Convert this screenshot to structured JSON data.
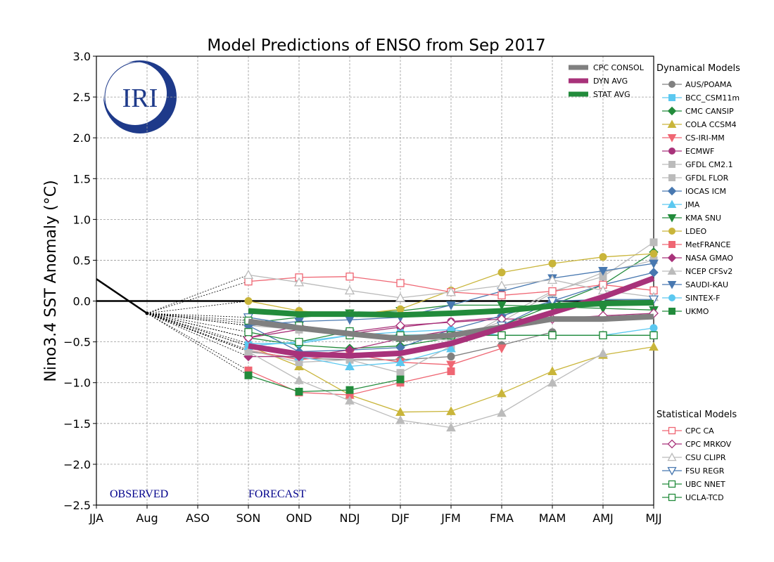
{
  "chart_data": {
    "type": "line",
    "title": "Model Predictions of ENSO from Sep 2017",
    "ylabel": "Nino3.4 SST Anomaly (°C)",
    "xlabel": "",
    "categories": [
      "JJA",
      "Aug",
      "ASO",
      "SON",
      "OND",
      "NDJ",
      "DJF",
      "JFM",
      "FMA",
      "MAM",
      "AMJ",
      "MJJ"
    ],
    "yticks": [
      "3.0",
      "2.5",
      "2.0",
      "1.5",
      "1.0",
      "0.5",
      "0.0",
      "−0.5",
      "−1.0",
      "−1.5",
      "−2.0",
      "−2.5"
    ],
    "ylim": [
      -2.5,
      3.0
    ],
    "grid": true,
    "logo_text": "IRI",
    "observed_label": "OBSERVED",
    "forecast_label": "FORECAST",
    "observed": {
      "x": [
        "JJA",
        "Aug"
      ],
      "values": [
        0.27,
        -0.15
      ]
    },
    "forecast_x": [
      "SON",
      "OND",
      "NDJ",
      "DJF",
      "JFM",
      "FMA",
      "MAM",
      "AMJ",
      "MJJ"
    ],
    "averages": [
      {
        "name": "CPC CONSOL",
        "color": "#808080",
        "values": [
          -0.25,
          -0.33,
          -0.4,
          -0.46,
          -0.42,
          -0.32,
          -0.22,
          -0.22,
          -0.19
        ]
      },
      {
        "name": "DYN AVG",
        "color": "#a8327a",
        "values": [
          -0.55,
          -0.65,
          -0.67,
          -0.64,
          -0.52,
          -0.33,
          -0.14,
          0.05,
          0.28
        ]
      },
      {
        "name": "STAT AVG",
        "color": "#228b3b",
        "values": [
          -0.12,
          -0.16,
          -0.16,
          -0.17,
          -0.15,
          -0.12,
          -0.06,
          -0.03,
          -0.02
        ]
      }
    ],
    "dynamical_title": "Dynamical Models",
    "dynamical": [
      {
        "name": "AUS/POAMA",
        "color": "#808080",
        "marker": "circle",
        "values": [
          -0.62,
          -0.7,
          -0.72,
          -0.72,
          -0.68,
          -0.54,
          -0.38,
          null,
          null
        ]
      },
      {
        "name": "BCC_CSM11m",
        "color": "#5bc8f0",
        "marker": "square",
        "values": [
          -0.55,
          -0.5,
          -0.42,
          -0.42,
          -0.4,
          -0.42,
          -0.42,
          -0.42,
          -0.42
        ]
      },
      {
        "name": "CMC CANSIP",
        "color": "#228b3b",
        "marker": "diamond",
        "values": [
          -0.45,
          -0.54,
          -0.58,
          -0.55,
          -0.45,
          -0.3,
          -0.05,
          0.2,
          0.6
        ]
      },
      {
        "name": "COLA CCSM4",
        "color": "#c9b53a",
        "marker": "tri-up",
        "values": [
          -0.55,
          -0.8,
          -1.15,
          -1.36,
          -1.35,
          -1.13,
          -0.86,
          -0.66,
          -0.56
        ]
      },
      {
        "name": "CS-IRI-MM",
        "color": "#ef6673",
        "marker": "tri-down",
        "values": [
          -0.6,
          -0.72,
          -0.65,
          -0.75,
          -0.78,
          -0.58,
          null,
          null,
          null
        ]
      },
      {
        "name": "ECMWF",
        "color": "#a8327a",
        "marker": "circle",
        "values": [
          -0.45,
          -0.35,
          -0.4,
          -0.32,
          -0.25,
          -0.2,
          null,
          null,
          null
        ]
      },
      {
        "name": "GFDL CM2.1",
        "color": "#bbbbbb",
        "marker": "square",
        "values": [
          -0.6,
          -0.75,
          -0.72,
          -0.88,
          -0.55,
          -0.2,
          0.12,
          0.3,
          0.72
        ]
      },
      {
        "name": "GFDL FLOR",
        "color": "#bbbbbb",
        "marker": "square",
        "values": [
          -0.3,
          -0.35,
          -0.38,
          -0.45,
          -0.48,
          -0.25,
          0.1,
          0.35,
          0.5
        ]
      },
      {
        "name": "IOCAS ICM",
        "color": "#4878b0",
        "marker": "diamond",
        "values": [
          -0.3,
          -0.62,
          -0.6,
          -0.57,
          -0.35,
          -0.18,
          0.0,
          0.2,
          0.35
        ]
      },
      {
        "name": "JMA",
        "color": "#5bc8f0",
        "marker": "tri-up",
        "values": [
          -0.55,
          -0.68,
          -0.8,
          -0.75,
          -0.58,
          null,
          null,
          null,
          null
        ]
      },
      {
        "name": "KMA SNU",
        "color": "#228b3b",
        "marker": "tri-down",
        "values": [
          -0.27,
          -0.2,
          -0.15,
          -0.12,
          -0.05,
          -0.05,
          -0.07,
          -0.09,
          -0.11
        ]
      },
      {
        "name": "LDEO",
        "color": "#c9b53a",
        "marker": "circle",
        "values": [
          0.0,
          -0.12,
          -0.17,
          -0.1,
          0.13,
          0.35,
          0.46,
          0.54,
          0.58
        ]
      },
      {
        "name": "MetFRANCE",
        "color": "#ef6673",
        "marker": "square",
        "values": [
          -0.85,
          -1.12,
          -1.15,
          -1.0,
          -0.86,
          null,
          null,
          null,
          null
        ]
      },
      {
        "name": "NASA GMAO",
        "color": "#a8327a",
        "marker": "diamond",
        "values": [
          -0.68,
          -0.68,
          -0.6,
          -0.46,
          -0.36,
          null,
          null,
          null,
          null
        ]
      },
      {
        "name": "NCEP CFSv2",
        "color": "#bbbbbb",
        "marker": "tri-up",
        "values": [
          -0.62,
          -0.97,
          -1.22,
          -1.46,
          -1.55,
          -1.37,
          -1.0,
          -0.64,
          null
        ]
      },
      {
        "name": "SAUDI-KAU",
        "color": "#4878b0",
        "marker": "tri-down",
        "values": [
          -0.3,
          -0.25,
          -0.23,
          -0.2,
          -0.05,
          0.12,
          0.28,
          0.37,
          0.46
        ]
      },
      {
        "name": "SINTEX-F",
        "color": "#5bc8f0",
        "marker": "circle",
        "values": [
          -0.52,
          -0.52,
          -0.42,
          -0.38,
          -0.35,
          -0.42,
          -0.42,
          -0.42,
          -0.33
        ]
      },
      {
        "name": "UKMO",
        "color": "#228b3b",
        "marker": "square",
        "values": [
          -0.91,
          -1.11,
          -1.09,
          -0.96,
          null,
          null,
          null,
          null,
          null
        ]
      }
    ],
    "statistical_title": "Statistical Models",
    "statistical": [
      {
        "name": "CPC CA",
        "color": "#ef6673",
        "marker": "o-square",
        "values": [
          0.24,
          0.29,
          0.3,
          0.22,
          0.11,
          0.07,
          0.12,
          0.2,
          0.13
        ]
      },
      {
        "name": "CPC MRKOV",
        "color": "#a8327a",
        "marker": "o-diamond",
        "values": [
          -0.45,
          -0.3,
          -0.38,
          -0.3,
          -0.26,
          -0.22,
          -0.22,
          -0.18,
          -0.15
        ]
      },
      {
        "name": "CSU CLIPR",
        "color": "#bbbbbb",
        "marker": "o-tri-up",
        "values": [
          0.32,
          0.23,
          0.13,
          0.04,
          0.11,
          0.19,
          0.26,
          0.13,
          0.05
        ]
      },
      {
        "name": "FSU REGR",
        "color": "#4878b0",
        "marker": "o-tri-down",
        "values": [
          -0.2,
          -0.3,
          -0.4,
          -0.45,
          -0.42,
          -0.3,
          0.0,
          0.02,
          0.02
        ]
      },
      {
        "name": "UBC NNET",
        "color": "#228b3b",
        "marker": "o-square",
        "values": [
          -0.38,
          -0.5,
          -0.37,
          -0.45,
          -0.42,
          -0.42,
          -0.42,
          -0.42,
          -0.42
        ]
      },
      {
        "name": "UCLA-TCD",
        "color": "#228b3b",
        "marker": "o-square",
        "values": [
          -0.24,
          -0.3,
          -0.42,
          -0.42,
          -0.42,
          -0.42,
          -0.42,
          -0.42,
          -0.42
        ]
      }
    ]
  }
}
